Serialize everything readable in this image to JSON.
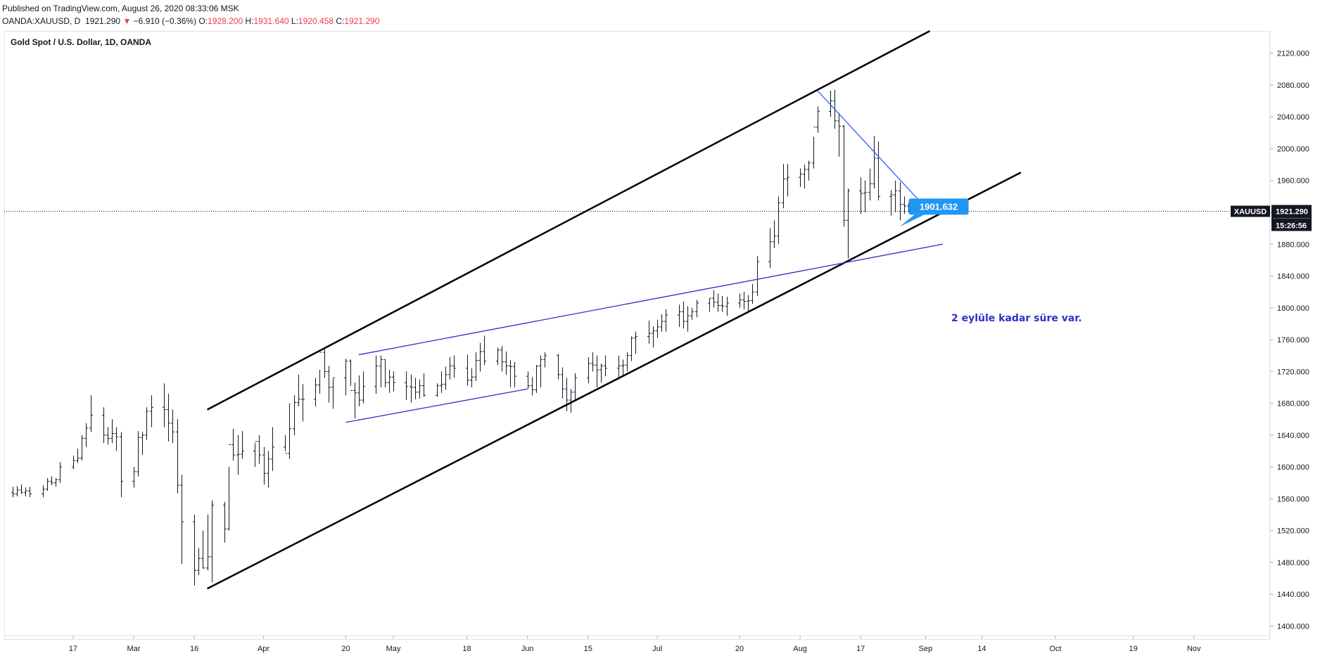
{
  "header": {
    "published": "Published on TradingView.com, August 26, 2020 08:33:06 MSK",
    "symbol_line": "OANDA:XAUUSD, D",
    "last": "1921.290",
    "change_arrow": "▼",
    "change": "−6.910 (−0.36%)",
    "o_label": "O:",
    "o_value": "1928.200",
    "h_label": "H:",
    "h_value": "1931.640",
    "l_label": "L:",
    "l_value": "1920.458",
    "c_label": "C:",
    "c_value": "1921.290"
  },
  "colors": {
    "candle": "#131722",
    "channel": "#000000",
    "trendline": "#2b32c8",
    "triangle_line": "#2962ff",
    "callout": "#2196f3",
    "price_tag": "#131722",
    "down": "#f23645"
  },
  "chart_data": {
    "type": "ohlc-bar",
    "title": "Gold Spot / U.S. Dollar, 1D, OANDA",
    "ylim": [
      1388,
      2148
    ],
    "y_ticks": [
      1400,
      1440,
      1480,
      1520,
      1560,
      1600,
      1640,
      1680,
      1720,
      1760,
      1800,
      1840,
      1880,
      1920,
      1960,
      2000,
      2040,
      2080,
      2120
    ],
    "y_tick_labels": [
      "1400.000",
      "1440.000",
      "1480.000",
      "1520.000",
      "1560.000",
      "1600.000",
      "1640.000",
      "1680.000",
      "1720.000",
      "1760.000",
      "1800.000",
      "1840.000",
      "1880.000",
      "1920.000",
      "1960.000",
      "2000.000",
      "2040.000",
      "2080.000",
      "2120.000"
    ],
    "x_ticks": [
      {
        "date": "2020-02-17",
        "label": "17"
      },
      {
        "date": "2020-03-02",
        "label": "Mar"
      },
      {
        "date": "2020-03-16",
        "label": "16"
      },
      {
        "date": "2020-04-01",
        "label": "Apr"
      },
      {
        "date": "2020-04-20",
        "label": "20"
      },
      {
        "date": "2020-05-01",
        "label": "May"
      },
      {
        "date": "2020-05-18",
        "label": "18"
      },
      {
        "date": "2020-06-01",
        "label": "Jun"
      },
      {
        "date": "2020-06-15",
        "label": "15"
      },
      {
        "date": "2020-07-01",
        "label": "Jul"
      },
      {
        "date": "2020-07-20",
        "label": "20"
      },
      {
        "date": "2020-08-03",
        "label": "Aug"
      },
      {
        "date": "2020-08-17",
        "label": "17"
      },
      {
        "date": "2020-09-01",
        "label": "Sep"
      },
      {
        "date": "2020-09-14",
        "label": "14"
      },
      {
        "date": "2020-10-01",
        "label": "Oct"
      },
      {
        "date": "2020-10-19",
        "label": "19"
      },
      {
        "date": "2020-11-02",
        "label": "Nov"
      }
    ],
    "x_start_date": "2020-02-03",
    "bars": [
      [
        1568,
        1575,
        1562,
        1566
      ],
      [
        1566,
        1576,
        1563,
        1571
      ],
      [
        1571,
        1578,
        1566,
        1568
      ],
      [
        1568,
        1574,
        1563,
        1570
      ],
      [
        1570,
        1575,
        1562,
        1566
      ],
      [
        1566,
        1577,
        1562,
        1572
      ],
      [
        1572,
        1586,
        1570,
        1582
      ],
      [
        1582,
        1588,
        1577,
        1580
      ],
      [
        1580,
        1586,
        1575,
        1584
      ],
      [
        1584,
        1606,
        1580,
        1600
      ],
      [
        1600,
        1614,
        1597,
        1608
      ],
      [
        1608,
        1623,
        1605,
        1611
      ],
      [
        1611,
        1640,
        1608,
        1636
      ],
      [
        1636,
        1655,
        1625,
        1649
      ],
      [
        1649,
        1690,
        1644,
        1665
      ],
      [
        1665,
        1675,
        1630,
        1640
      ],
      [
        1640,
        1650,
        1628,
        1636
      ],
      [
        1636,
        1660,
        1630,
        1642
      ],
      [
        1642,
        1650,
        1620,
        1638
      ],
      [
        1638,
        1644,
        1562,
        1582
      ],
      [
        1582,
        1600,
        1574,
        1594
      ],
      [
        1594,
        1645,
        1588,
        1637
      ],
      [
        1637,
        1644,
        1615,
        1640
      ],
      [
        1640,
        1675,
        1634,
        1670
      ],
      [
        1670,
        1690,
        1650,
        1675
      ],
      [
        1675,
        1705,
        1650,
        1672
      ],
      [
        1672,
        1692,
        1632,
        1655
      ],
      [
        1655,
        1672,
        1630,
        1644
      ],
      [
        1644,
        1660,
        1567,
        1577
      ],
      [
        1577,
        1590,
        1478,
        1531
      ],
      [
        1531,
        1540,
        1451,
        1470
      ],
      [
        1470,
        1498,
        1464,
        1485
      ],
      [
        1485,
        1520,
        1472,
        1473
      ],
      [
        1473,
        1540,
        1470,
        1487
      ],
      [
        1487,
        1558,
        1455,
        1552
      ],
      [
        1552,
        1556,
        1505,
        1522
      ],
      [
        1522,
        1600,
        1520,
        1628
      ],
      [
        1628,
        1648,
        1608,
        1615
      ],
      [
        1615,
        1640,
        1590,
        1616
      ],
      [
        1616,
        1645,
        1610,
        1620
      ],
      [
        1620,
        1630,
        1600,
        1632
      ],
      [
        1632,
        1640,
        1604,
        1615
      ],
      [
        1615,
        1625,
        1578,
        1592
      ],
      [
        1592,
        1620,
        1574,
        1610
      ],
      [
        1610,
        1650,
        1595,
        1625
      ],
      [
        1625,
        1640,
        1620,
        1617
      ],
      [
        1617,
        1680,
        1610,
        1648
      ],
      [
        1648,
        1690,
        1640,
        1681
      ],
      [
        1681,
        1716,
        1676,
        1685
      ],
      [
        1685,
        1704,
        1657,
        1685
      ],
      [
        1685,
        1712,
        1676,
        1703
      ],
      [
        1703,
        1722,
        1692,
        1744
      ],
      [
        1744,
        1748,
        1712,
        1720
      ],
      [
        1720,
        1727,
        1681,
        1700
      ],
      [
        1700,
        1711,
        1673,
        1712
      ],
      [
        1712,
        1736,
        1690,
        1733
      ],
      [
        1733,
        1735,
        1702,
        1696
      ],
      [
        1696,
        1706,
        1661,
        1693
      ],
      [
        1693,
        1715,
        1676,
        1684
      ],
      [
        1684,
        1720,
        1680,
        1701
      ],
      [
        1701,
        1740,
        1692,
        1727
      ],
      [
        1727,
        1740,
        1700,
        1735
      ],
      [
        1735,
        1735,
        1700,
        1706
      ],
      [
        1706,
        1722,
        1693,
        1713
      ],
      [
        1713,
        1720,
        1695,
        1706
      ],
      [
        1706,
        1720,
        1684,
        1701
      ],
      [
        1701,
        1716,
        1681,
        1700
      ],
      [
        1700,
        1712,
        1685,
        1694
      ],
      [
        1694,
        1710,
        1686,
        1702
      ],
      [
        1702,
        1718,
        1688,
        1690
      ],
      [
        1690,
        1705,
        1688,
        1702
      ],
      [
        1702,
        1720,
        1693,
        1704
      ],
      [
        1704,
        1726,
        1697,
        1716
      ],
      [
        1716,
        1738,
        1710,
        1727
      ],
      [
        1727,
        1740,
        1712,
        1724
      ],
      [
        1724,
        1741,
        1702,
        1709
      ],
      [
        1709,
        1724,
        1700,
        1713
      ],
      [
        1713,
        1744,
        1708,
        1734
      ],
      [
        1734,
        1756,
        1720,
        1745
      ],
      [
        1745,
        1765,
        1728,
        1733
      ],
      [
        1733,
        1750,
        1728,
        1747
      ],
      [
        1747,
        1752,
        1720,
        1732
      ],
      [
        1732,
        1745,
        1716,
        1727
      ],
      [
        1727,
        1734,
        1700,
        1726
      ],
      [
        1726,
        1732,
        1700,
        1714
      ],
      [
        1714,
        1720,
        1698,
        1702
      ],
      [
        1702,
        1713,
        1690,
        1697
      ],
      [
        1697,
        1728,
        1693,
        1727
      ],
      [
        1727,
        1740,
        1700,
        1735
      ],
      [
        1735,
        1744,
        1725,
        1740
      ],
      [
        1740,
        1742,
        1710,
        1716
      ],
      [
        1716,
        1725,
        1686,
        1698
      ],
      [
        1698,
        1712,
        1670,
        1684
      ],
      [
        1684,
        1698,
        1668,
        1694
      ],
      [
        1694,
        1718,
        1683,
        1712
      ],
      [
        1712,
        1738,
        1705,
        1730
      ],
      [
        1730,
        1744,
        1720,
        1728
      ],
      [
        1728,
        1740,
        1700,
        1722
      ],
      [
        1722,
        1730,
        1706,
        1727
      ],
      [
        1727,
        1740,
        1714,
        1724
      ],
      [
        1724,
        1740,
        1710,
        1727
      ],
      [
        1727,
        1735,
        1715,
        1728
      ],
      [
        1728,
        1744,
        1720,
        1740
      ],
      [
        1740,
        1764,
        1733,
        1762
      ],
      [
        1762,
        1770,
        1742,
        1764
      ],
      [
        1764,
        1784,
        1755,
        1768
      ],
      [
        1768,
        1777,
        1750,
        1771
      ],
      [
        1771,
        1785,
        1762,
        1776
      ],
      [
        1776,
        1792,
        1770,
        1783
      ],
      [
        1783,
        1798,
        1770,
        1791
      ],
      [
        1791,
        1804,
        1776,
        1795
      ],
      [
        1795,
        1808,
        1774,
        1783
      ],
      [
        1783,
        1802,
        1770,
        1790
      ],
      [
        1790,
        1800,
        1785,
        1795
      ],
      [
        1795,
        1810,
        1788,
        1806
      ],
      [
        1806,
        1812,
        1795,
        1812
      ],
      [
        1812,
        1822,
        1800,
        1807
      ],
      [
        1807,
        1818,
        1795,
        1803
      ],
      [
        1803,
        1815,
        1795,
        1802
      ],
      [
        1802,
        1814,
        1790,
        1806
      ],
      [
        1806,
        1818,
        1800,
        1810
      ],
      [
        1810,
        1820,
        1798,
        1808
      ],
      [
        1808,
        1816,
        1795,
        1809
      ],
      [
        1809,
        1830,
        1805,
        1820
      ],
      [
        1820,
        1865,
        1815,
        1858
      ],
      [
        1858,
        1900,
        1850,
        1883
      ],
      [
        1883,
        1910,
        1875,
        1890
      ],
      [
        1890,
        1940,
        1880,
        1932
      ],
      [
        1932,
        1981,
        1925,
        1962
      ],
      [
        1962,
        1981,
        1940,
        1964
      ],
      [
        1964,
        1975,
        1952,
        1968
      ],
      [
        1968,
        1980,
        1950,
        1974
      ],
      [
        1974,
        1985,
        1960,
        1982
      ],
      [
        1982,
        2015,
        1975,
        2027
      ],
      [
        2027,
        2053,
        2020,
        2047
      ],
      [
        2047,
        2073,
        2040,
        2060
      ],
      [
        2060,
        2074,
        2025,
        2035
      ],
      [
        2035,
        2045,
        1990,
        2028
      ],
      [
        2028,
        2030,
        1902,
        1910
      ],
      [
        1910,
        1950,
        1862,
        1947
      ],
      [
        1947,
        1964,
        1918,
        1944
      ],
      [
        1944,
        1960,
        1920,
        1945
      ],
      [
        1945,
        1975,
        1935,
        1956
      ],
      [
        1956,
        2016,
        1950,
        1988
      ],
      [
        1988,
        2009,
        1935,
        1940
      ],
      [
        1940,
        1948,
        1916,
        1942
      ],
      [
        1942,
        1960,
        1920,
        1947
      ],
      [
        1947,
        1958,
        1910,
        1930
      ],
      [
        1930,
        1940,
        1918,
        1928
      ],
      [
        1928,
        1932,
        1920,
        1921
      ]
    ],
    "drawings": {
      "channel_upper": [
        [
          "2020-03-19",
          1672
        ],
        [
          "2020-09-02",
          2148
        ]
      ],
      "channel_lower": [
        [
          "2020-03-19",
          1447
        ],
        [
          "2020-09-23",
          1970
        ]
      ],
      "trendline_long": [
        [
          "2020-04-23",
          1741
        ],
        [
          "2020-09-05",
          1880
        ]
      ],
      "trendline_short": [
        [
          "2020-04-20",
          1656
        ],
        [
          "2020-06-01",
          1698
        ]
      ],
      "triangle_upper": [
        [
          "2020-08-07",
          2073
        ],
        [
          "2020-08-31",
          1932
        ]
      ],
      "arrow_start": [
        "2020-08-26",
        1902
      ],
      "callout_value": "1901.632"
    },
    "annotation": "2 eylüle kadar süre var.",
    "current_price": {
      "value": 1921.29,
      "symbol": "XAUUSD",
      "price_label": "1921.290",
      "countdown": "15:26:56"
    }
  }
}
